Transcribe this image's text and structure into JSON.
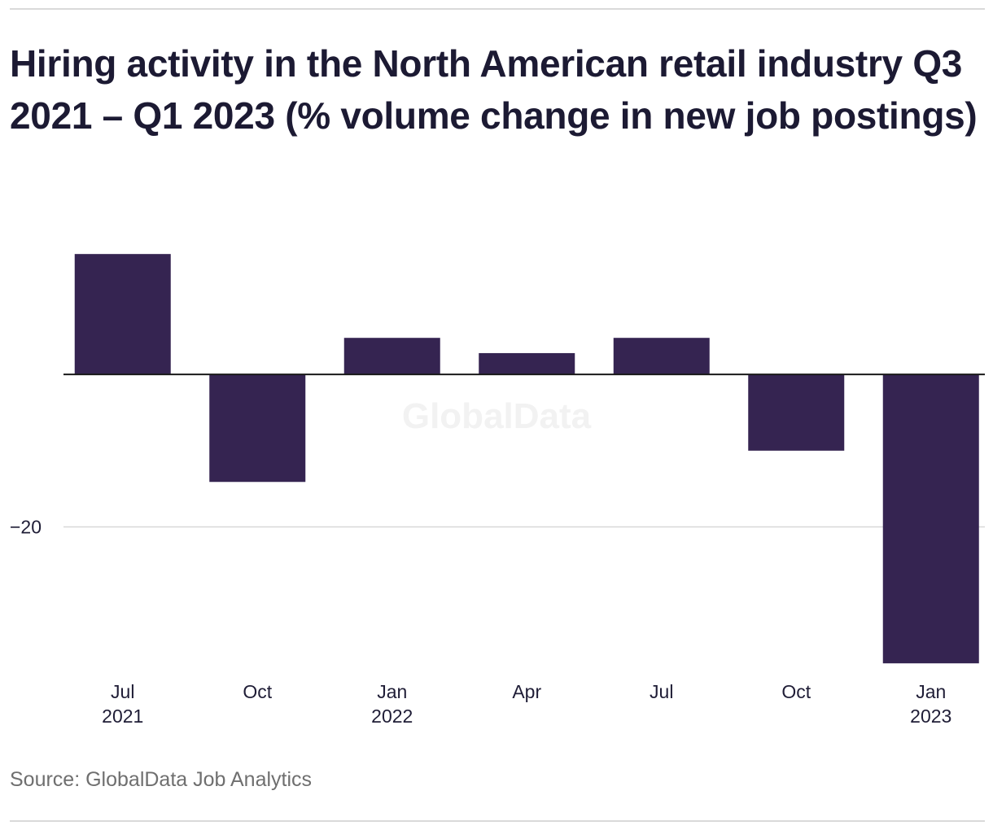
{
  "title": "Hiring activity in the North American retail industry Q3 2021 – Q1 2023 (% volume change in new job postings)",
  "source": "Source: GlobalData Job Analytics",
  "watermark": "GlobalData",
  "colors": {
    "bar": "#352451",
    "grid": "#d8d8d8",
    "zero_line": "#1a1a1a",
    "text": "#1f1d36",
    "source_text": "#6f6f6f"
  },
  "chart_data": {
    "type": "bar",
    "title": "Hiring activity in the North American retail industry Q3 2021 – Q1 2023 (% volume change in new job postings)",
    "categories": [
      "Jul 2021",
      "Oct",
      "Jan 2022",
      "Apr",
      "Jul",
      "Oct",
      "Jan 2023"
    ],
    "tick_labels": [
      [
        "Jul",
        "2021"
      ],
      [
        "Oct",
        ""
      ],
      [
        "Jan",
        "2022"
      ],
      [
        "Apr",
        ""
      ],
      [
        "Jul",
        ""
      ],
      [
        "Oct",
        ""
      ],
      [
        "Jan",
        "2023"
      ]
    ],
    "values": [
      15.8,
      -14.1,
      4.8,
      2.8,
      4.8,
      -10.0,
      -37.9
    ],
    "y_ticks": [
      {
        "value": -20,
        "label": "−20"
      }
    ],
    "ylim": [
      -38.2,
      18.7
    ],
    "grid": true,
    "xlabel": "",
    "ylabel": ""
  }
}
